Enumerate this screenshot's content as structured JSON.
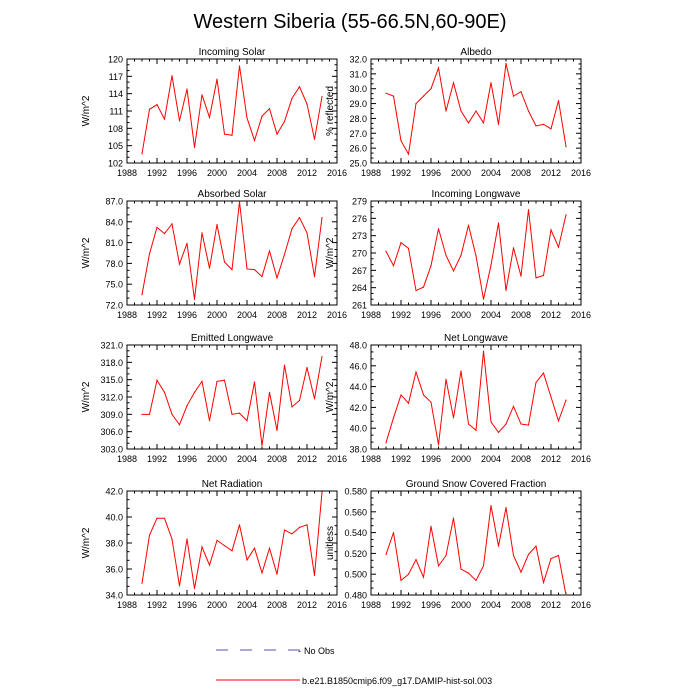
{
  "figure_title": "Western Siberia (55-66.5N,60-90E)",
  "colors": {
    "series": "#ff0000",
    "no_obs": "#5555aa",
    "axis": "#000000"
  },
  "legend": {
    "no_obs_label": "No Obs",
    "run_label": "b.e21.B1850cmip6.f09_g17.DAMIP-hist-sol.003"
  },
  "chart_data": [
    {
      "type": "line",
      "title": "Incoming Solar",
      "ylabel": "W/m^2",
      "xlim": [
        1988,
        2016
      ],
      "xticks": [
        "1988",
        "1992",
        "1996",
        "2000",
        "2004",
        "2008",
        "2012",
        "2016"
      ],
      "ylim": [
        102,
        120
      ],
      "yticks": [
        "102",
        "105",
        "108",
        "111",
        "114",
        "117",
        "120"
      ],
      "x": [
        1990,
        1991,
        1992,
        1993,
        1994,
        1995,
        1996,
        1997,
        1998,
        1999,
        2000,
        2001,
        2002,
        2003,
        2004,
        2005,
        2006,
        2007,
        2008,
        2009,
        2010,
        2011,
        2012,
        2013,
        2014
      ],
      "values": [
        103.6,
        111.3,
        112.1,
        109.6,
        117.1,
        109.3,
        114.8,
        104.7,
        113.8,
        109.9,
        116.5,
        107.0,
        106.8,
        118.8,
        109.8,
        105.9,
        110.1,
        111.4,
        107.0,
        109.2,
        113.2,
        115.2,
        112.2,
        106.1,
        113.5
      ]
    },
    {
      "type": "line",
      "title": "Albedo",
      "ylabel": "% reflected",
      "xlim": [
        1988,
        2016
      ],
      "xticks": [
        "1988",
        "1992",
        "1996",
        "2000",
        "2004",
        "2008",
        "2012",
        "2016"
      ],
      "ylim": [
        25.0,
        32.0
      ],
      "yticks": [
        "25.0",
        "26.0",
        "27.0",
        "28.0",
        "29.0",
        "30.0",
        "31.0",
        "32.0"
      ],
      "x": [
        1990,
        1991,
        1992,
        1993,
        1994,
        1995,
        1996,
        1997,
        1998,
        1999,
        2000,
        2001,
        2002,
        2003,
        2004,
        2005,
        2006,
        2007,
        2008,
        2009,
        2010,
        2011,
        2012,
        2013,
        2014
      ],
      "values": [
        29.7,
        29.5,
        26.5,
        25.6,
        29.0,
        29.5,
        30.0,
        31.4,
        28.5,
        30.4,
        28.5,
        27.7,
        28.5,
        27.7,
        30.4,
        27.6,
        31.7,
        29.5,
        29.8,
        28.5,
        27.5,
        27.6,
        27.3,
        29.2,
        26.1
      ]
    },
    {
      "type": "line",
      "title": "Absorbed Solar",
      "ylabel": "W/m^2",
      "xlim": [
        1988,
        2016
      ],
      "xticks": [
        "1988",
        "1992",
        "1996",
        "2000",
        "2004",
        "2008",
        "2012",
        "2016"
      ],
      "ylim": [
        72.0,
        87.0
      ],
      "yticks": [
        "72.0",
        "75.0",
        "78.0",
        "81.0",
        "84.0",
        "87.0"
      ],
      "x": [
        1990,
        1991,
        1992,
        1993,
        1994,
        1995,
        1996,
        1997,
        1998,
        1999,
        2000,
        2001,
        2002,
        2003,
        2004,
        2005,
        2006,
        2007,
        2008,
        2009,
        2010,
        2011,
        2012,
        2013,
        2014
      ],
      "values": [
        73.5,
        79.4,
        83.2,
        82.3,
        83.7,
        77.9,
        80.9,
        72.8,
        82.4,
        77.3,
        83.6,
        78.2,
        77.1,
        86.9,
        77.2,
        77.1,
        76.1,
        79.8,
        75.9,
        79.3,
        83.0,
        84.6,
        82.4,
        76.1,
        84.6
      ]
    },
    {
      "type": "line",
      "title": "Incoming Longwave",
      "ylabel": "W/m^2",
      "xlim": [
        1988,
        2016
      ],
      "xticks": [
        "1988",
        "1992",
        "1996",
        "2000",
        "2004",
        "2008",
        "2012",
        "2016"
      ],
      "ylim": [
        261,
        279
      ],
      "yticks": [
        "261",
        "264",
        "267",
        "270",
        "273",
        "276",
        "279"
      ],
      "x": [
        1990,
        1991,
        1992,
        1993,
        1994,
        1995,
        1996,
        1997,
        1998,
        1999,
        2000,
        2001,
        2002,
        2003,
        2004,
        2005,
        2006,
        2007,
        2008,
        2009,
        2010,
        2011,
        2012,
        2013,
        2014
      ],
      "values": [
        270.3,
        267.8,
        271.8,
        270.8,
        263.5,
        264.1,
        267.8,
        274.2,
        269.6,
        266.9,
        269.6,
        274.8,
        269.5,
        262.0,
        267.9,
        275.2,
        263.5,
        270.9,
        266.0,
        277.5,
        265.7,
        266.1,
        274.0,
        271.0,
        276.6
      ]
    },
    {
      "type": "line",
      "title": "Emitted Longwave",
      "ylabel": "W/m^2",
      "xlim": [
        1988,
        2016
      ],
      "xticks": [
        "1988",
        "1992",
        "1996",
        "2000",
        "2004",
        "2008",
        "2012",
        "2016"
      ],
      "ylim": [
        303.0,
        321.0
      ],
      "yticks": [
        "303.0",
        "306.0",
        "309.0",
        "312.0",
        "315.0",
        "318.0",
        "321.0"
      ],
      "x": [
        1990,
        1991,
        1992,
        1993,
        1994,
        1995,
        1996,
        1997,
        1998,
        1999,
        2000,
        2001,
        2002,
        2003,
        2004,
        2005,
        2006,
        2007,
        2008,
        2009,
        2010,
        2011,
        2012,
        2013,
        2014
      ],
      "values": [
        309.0,
        309.0,
        314.9,
        312.8,
        309.0,
        307.2,
        310.5,
        312.8,
        314.7,
        307.9,
        314.7,
        314.9,
        309.0,
        309.2,
        307.9,
        314.6,
        303.6,
        312.8,
        306.2,
        317.5,
        310.3,
        311.4,
        317.1,
        311.7,
        319.0
      ]
    },
    {
      "type": "line",
      "title": "Net Longwave",
      "ylabel": "W/m^2",
      "xlim": [
        1988,
        2016
      ],
      "xticks": [
        "1988",
        "1992",
        "1996",
        "2000",
        "2004",
        "2008",
        "2012",
        "2016"
      ],
      "ylim": [
        38.0,
        48.0
      ],
      "yticks": [
        "38.0",
        "40.0",
        "42.0",
        "44.0",
        "46.0",
        "48.0"
      ],
      "x": [
        1990,
        1991,
        1992,
        1993,
        1994,
        1995,
        1996,
        1997,
        1998,
        1999,
        2000,
        2001,
        2002,
        2003,
        2004,
        2005,
        2006,
        2007,
        2008,
        2009,
        2010,
        2011,
        2012,
        2013,
        2014
      ],
      "values": [
        38.6,
        41.0,
        43.2,
        42.4,
        45.4,
        43.2,
        42.5,
        38.4,
        44.7,
        41.0,
        45.5,
        40.4,
        39.8,
        47.4,
        40.6,
        39.6,
        40.4,
        42.1,
        40.4,
        40.3,
        44.4,
        45.3,
        43.0,
        40.7,
        42.7
      ]
    },
    {
      "type": "line",
      "title": "Net Radiation",
      "ylabel": "W/m^2",
      "xlim": [
        1988,
        2016
      ],
      "xticks": [
        "1988",
        "1992",
        "1996",
        "2000",
        "2004",
        "2008",
        "2012",
        "2016"
      ],
      "ylim": [
        34.0,
        42.0
      ],
      "yticks": [
        "34.0",
        "36.0",
        "38.0",
        "40.0",
        "42.0"
      ],
      "x": [
        1990,
        1991,
        1992,
        1993,
        1994,
        1995,
        1996,
        1997,
        1998,
        1999,
        2000,
        2001,
        2002,
        2003,
        2004,
        2005,
        2006,
        2007,
        2008,
        2009,
        2010,
        2011,
        2012,
        2013,
        2014
      ],
      "values": [
        34.9,
        38.6,
        39.9,
        39.9,
        38.3,
        34.7,
        38.3,
        34.5,
        37.7,
        36.3,
        38.2,
        37.8,
        37.4,
        39.4,
        36.7,
        37.6,
        35.7,
        37.6,
        35.6,
        39.0,
        38.7,
        39.2,
        39.4,
        35.5,
        41.9
      ]
    },
    {
      "type": "line",
      "title": "Ground Snow Covered Fraction",
      "ylabel": "unitless",
      "xlim": [
        1988,
        2016
      ],
      "xticks": [
        "1988",
        "1992",
        "1996",
        "2000",
        "2004",
        "2008",
        "2012",
        "2016"
      ],
      "ylim": [
        0.48,
        0.58
      ],
      "yticks": [
        "0.480",
        "0.500",
        "0.520",
        "0.540",
        "0.560",
        "0.580"
      ],
      "x": [
        1990,
        1991,
        1992,
        1993,
        1994,
        1995,
        1996,
        1997,
        1998,
        1999,
        2000,
        2001,
        2002,
        2003,
        2004,
        2005,
        2006,
        2007,
        2008,
        2009,
        2010,
        2011,
        2012,
        2013,
        2014
      ],
      "values": [
        0.519,
        0.54,
        0.494,
        0.5,
        0.514,
        0.497,
        0.546,
        0.508,
        0.518,
        0.554,
        0.505,
        0.501,
        0.494,
        0.508,
        0.566,
        0.527,
        0.564,
        0.518,
        0.502,
        0.519,
        0.527,
        0.492,
        0.515,
        0.518,
        0.48
      ]
    }
  ]
}
